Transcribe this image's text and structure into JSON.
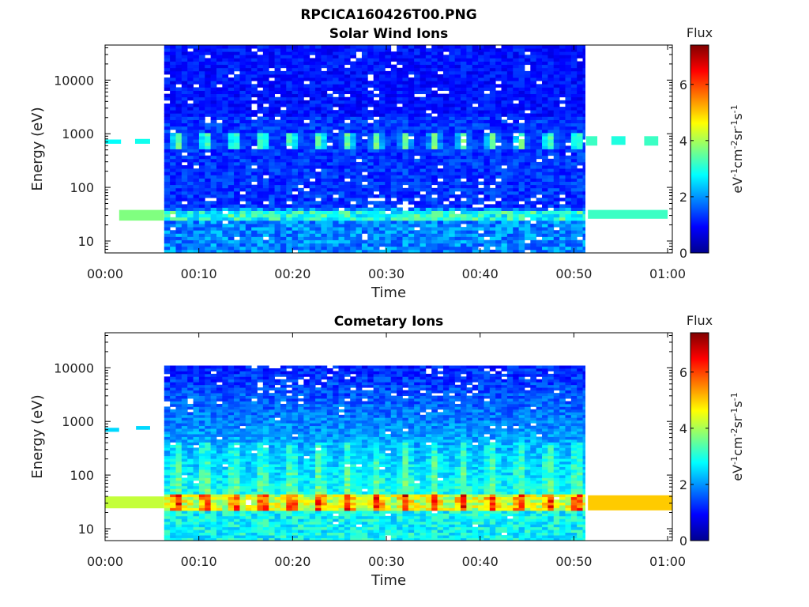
{
  "figure": {
    "title": "RPCICA160426T00.PNG"
  },
  "chart_data": [
    {
      "type": "heatmap",
      "title": "Solar Wind Ions",
      "xlabel": "Time",
      "ylabel": "Energy (eV)",
      "yscale": "log",
      "ylim": [
        6,
        45000
      ],
      "xlim_minutes": [
        0,
        60.5
      ],
      "x_tick_labels": [
        "00:00",
        "00:10",
        "00:20",
        "00:30",
        "00:40",
        "00:50",
        "01:00"
      ],
      "x_tick_minutes": [
        0,
        10,
        20,
        30,
        40,
        50,
        60
      ],
      "y_tick_labels": [
        "10",
        "100",
        "1000",
        "10000"
      ],
      "y_tick_values": [
        10,
        100,
        1000,
        10000
      ],
      "colorbar": {
        "title": "Flux",
        "label": "eV-1cm-2sr-1s-1",
        "ticks": [
          "0",
          "2",
          "4",
          "6"
        ],
        "tick_values": [
          0,
          2,
          4,
          6
        ],
        "range": [
          0,
          7.4
        ],
        "colormap": "jet"
      },
      "dense_coverage_minutes": [
        6.3,
        51.2
      ],
      "features": [
        {
          "name": "band",
          "energy_ev": [
            550,
            1000
          ],
          "flux": [
            3,
            4
          ],
          "pattern": "periodic blobs every ~3 min"
        },
        {
          "name": "band",
          "energy_ev": [
            25,
            40
          ],
          "flux": [
            3,
            4
          ],
          "pattern": "continuous"
        },
        {
          "name": "background",
          "energy_ev": [
            6,
            45000
          ],
          "flux": [
            0.5,
            2
          ],
          "pattern": "noisy"
        }
      ],
      "sparse_segments": [
        {
          "t": [
            0,
            1.7
          ],
          "energy_ev": [
            650,
            780
          ],
          "flux": 2.8
        },
        {
          "t": [
            3.2,
            4.8
          ],
          "energy_ev": [
            650,
            800
          ],
          "flux": 2.9
        },
        {
          "t": [
            1.5,
            6.3
          ],
          "energy_ev": [
            24,
            38
          ],
          "flux": 3.7
        },
        {
          "t": [
            51.3,
            52.5
          ],
          "energy_ev": [
            600,
            900
          ],
          "flux": 3.2
        },
        {
          "t": [
            54,
            55.5
          ],
          "energy_ev": [
            620,
            900
          ],
          "flux": 3.0
        },
        {
          "t": [
            57.5,
            59
          ],
          "energy_ev": [
            600,
            900
          ],
          "flux": 3.2
        },
        {
          "t": [
            51.5,
            60
          ],
          "energy_ev": [
            26,
            38
          ],
          "flux": 3.2
        }
      ]
    },
    {
      "type": "heatmap",
      "title": "Cometary Ions",
      "xlabel": "Time",
      "ylabel": "Energy (eV)",
      "yscale": "log",
      "ylim": [
        6,
        45000
      ],
      "xlim_minutes": [
        0,
        60.5
      ],
      "x_tick_labels": [
        "00:00",
        "00:10",
        "00:20",
        "00:30",
        "00:40",
        "00:50",
        "01:00"
      ],
      "x_tick_minutes": [
        0,
        10,
        20,
        30,
        40,
        50,
        60
      ],
      "y_tick_labels": [
        "10",
        "100",
        "1000",
        "10000"
      ],
      "y_tick_values": [
        10,
        100,
        1000,
        10000
      ],
      "colorbar": {
        "title": "Flux",
        "label": "eV-1cm-2sr-1s-1",
        "ticks": [
          "0",
          "2",
          "4",
          "6"
        ],
        "tick_values": [
          0,
          2,
          4,
          6
        ],
        "range": [
          0,
          7.4
        ],
        "colormap": "jet"
      },
      "dense_coverage_minutes": [
        6.3,
        51.2
      ],
      "energy_top_ev": 11000,
      "features": [
        {
          "name": "band",
          "energy_ev": [
            22,
            40
          ],
          "flux": [
            5.5,
            6.5
          ],
          "pattern": "periodic peaks every ~3 min"
        },
        {
          "name": "band",
          "energy_ev": [
            10,
            22
          ],
          "flux": [
            2.5,
            3.5
          ],
          "pattern": "continuous"
        },
        {
          "name": "background",
          "energy_ev": [
            40,
            11000
          ],
          "flux": [
            0.5,
            2
          ],
          "pattern": "decreasing with energy"
        }
      ],
      "sparse_segments": [
        {
          "t": [
            0,
            1.5
          ],
          "energy_ev": [
            640,
            760
          ],
          "flux": 2.5
        },
        {
          "t": [
            3.3,
            4.8
          ],
          "energy_ev": [
            700,
            820
          ],
          "flux": 2.5
        },
        {
          "t": [
            0,
            6.3
          ],
          "energy_ev": [
            24,
            40
          ],
          "flux": 4.2
        },
        {
          "t": [
            51.5,
            60.5
          ],
          "energy_ev": [
            22,
            42
          ],
          "flux": 5.0
        }
      ]
    }
  ]
}
